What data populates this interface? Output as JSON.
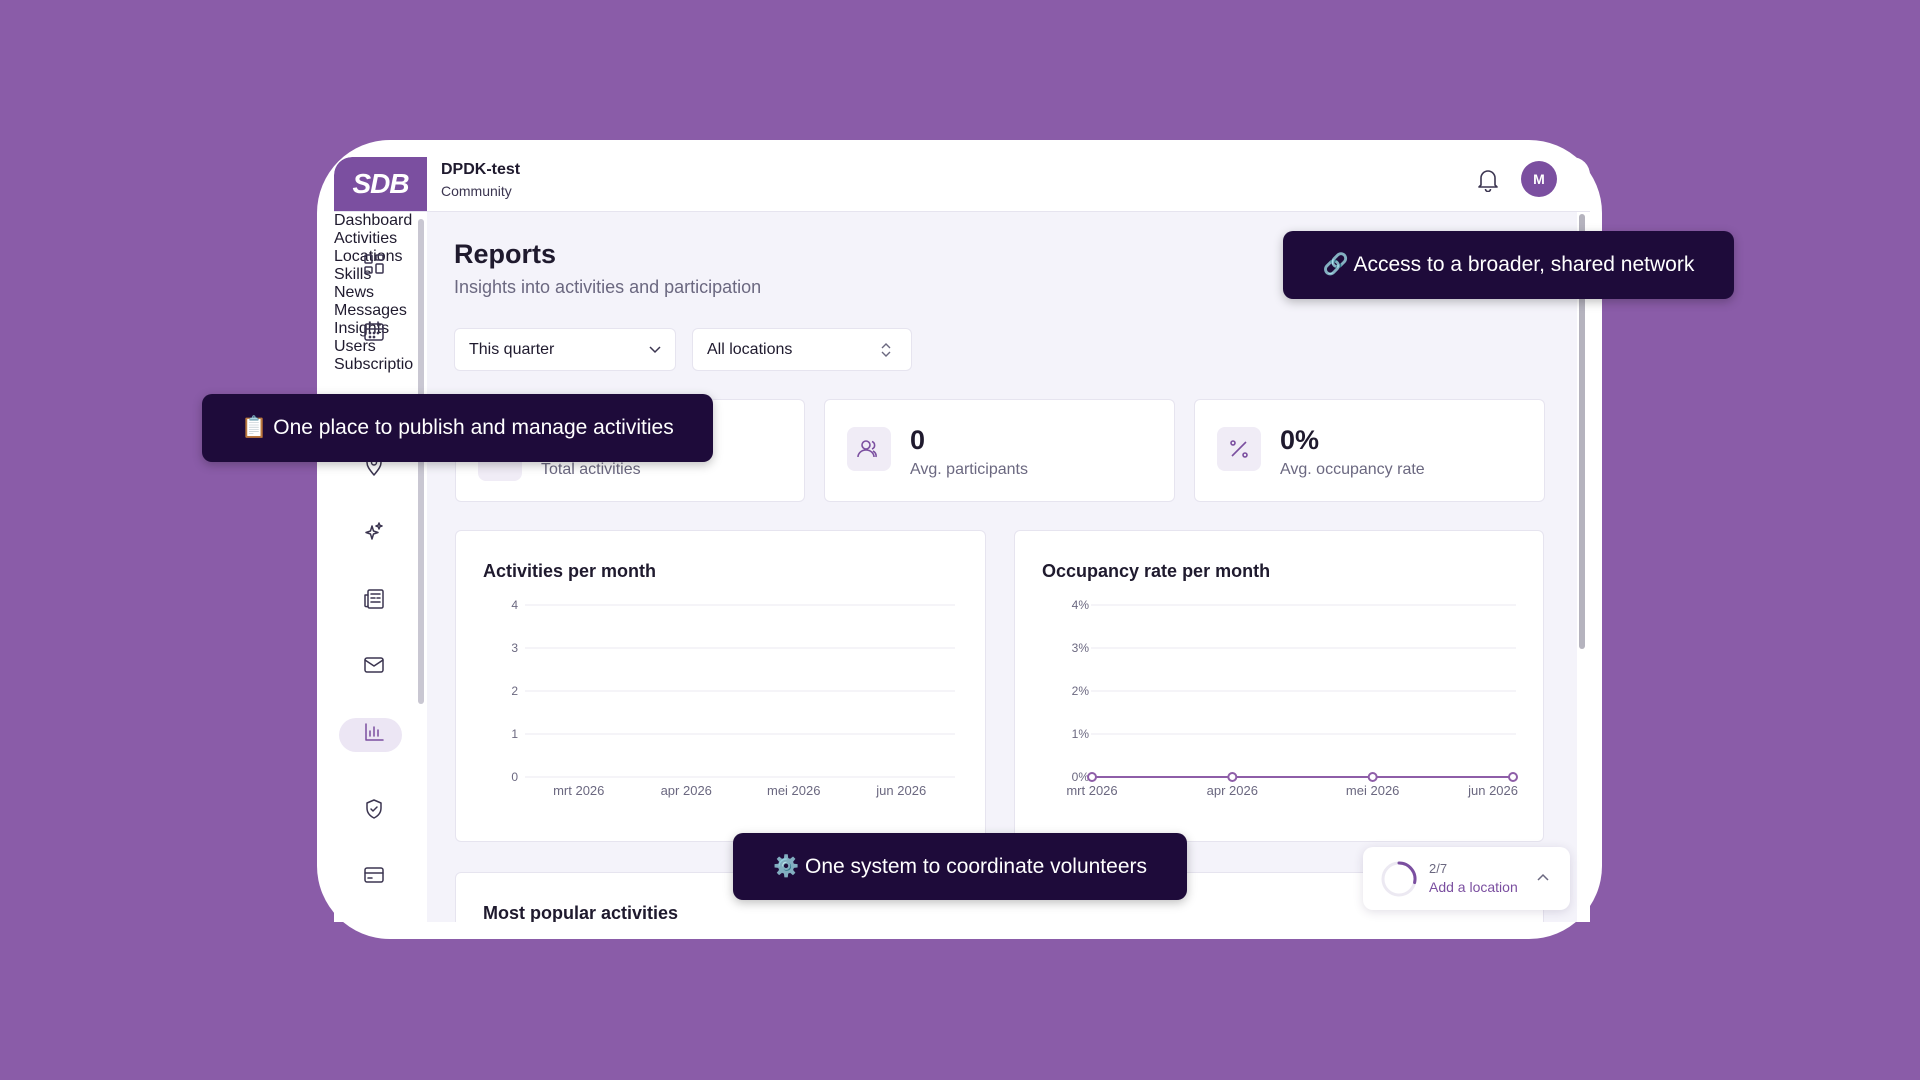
{
  "header": {
    "logo": "SDB",
    "organization": "DPDK-test",
    "subtitle": "Community",
    "avatar": "M"
  },
  "nav": [
    {
      "label": "Dashboard"
    },
    {
      "label": "Activities"
    },
    {
      "label": "Locations"
    },
    {
      "label": "Skills"
    },
    {
      "label": "News"
    },
    {
      "label": "Messages"
    },
    {
      "label": "Insights",
      "active": true
    },
    {
      "label": "Users"
    },
    {
      "label": "Subscription"
    }
  ],
  "page": {
    "title": "Reports",
    "subtitle": "Insights into activities and participation"
  },
  "filters": [
    "This quarter",
    "All locations"
  ],
  "stats": [
    {
      "label": "Total activities"
    },
    {
      "value": "0",
      "label": "Avg. participants"
    },
    {
      "value": "0%",
      "label": "Avg. occupancy rate"
    }
  ],
  "charts": [
    {
      "type": "bar",
      "title": "Activities per month",
      "categories": [
        "mrt 2026",
        "apr 2026",
        "mei 2026",
        "jun 2026"
      ],
      "values": [
        0,
        0,
        0,
        0
      ],
      "color": "#7b4fa0",
      "ylim": [
        0,
        4
      ],
      "yticks": [
        0,
        1,
        2,
        3,
        4
      ],
      "grid": true
    },
    {
      "type": "line",
      "title": "Occupancy rate per month",
      "categories": [
        "mrt 2026",
        "apr 2026",
        "mei 2026",
        "jun 2026"
      ],
      "values": [
        0,
        0,
        0,
        0
      ],
      "color": "#8e5ea8",
      "ylim": [
        0,
        4
      ],
      "yticks": [
        {
          "value": 0,
          "label": "0%"
        },
        {
          "value": 1,
          "label": "1%"
        },
        {
          "value": 2,
          "label": "2%"
        },
        {
          "value": 3,
          "label": "3%"
        },
        {
          "value": 4,
          "label": "4%"
        }
      ],
      "grid": true
    }
  ],
  "popular": {
    "title": "Most popular activities"
  },
  "checklist": {
    "progress": "2/7",
    "next": "Add a location"
  },
  "tooltips": [
    "🔗 Access to a broader, shared network",
    "📋 One place to publish and manage activities",
    "⚙️ One system to coordinate volunteers"
  ]
}
